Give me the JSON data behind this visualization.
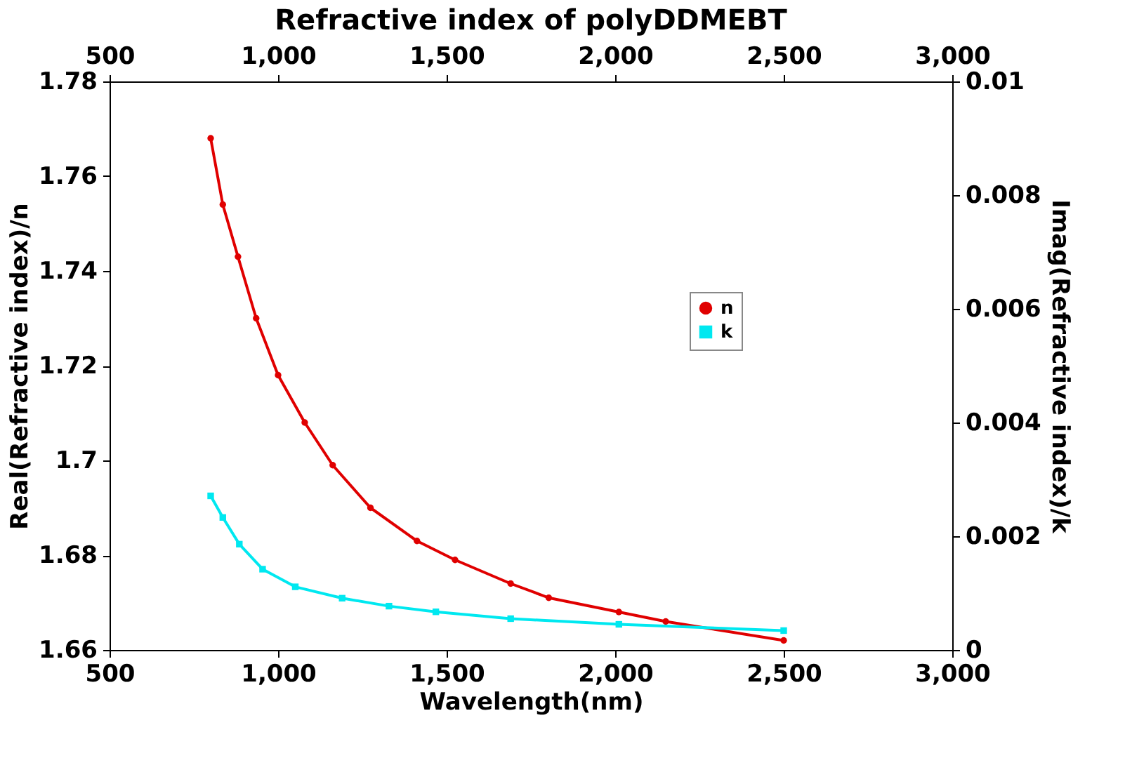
{
  "chart_data": {
    "type": "line",
    "title": "Refractive index of polyDDMEBT",
    "xlabel": "Wavelength(nm)",
    "ylabel": "Real(Refractive index)/n",
    "y2label": "Imag(Refractive index)/k",
    "xlim": [
      500,
      3000
    ],
    "xticks": [
      500,
      {
        "value": 1000,
        "label": "1,000"
      },
      {
        "value": 1500,
        "label": "1,500"
      },
      {
        "value": 2000,
        "label": "2,000"
      },
      {
        "value": 2500,
        "label": "2,500"
      },
      {
        "value": 3000,
        "label": "3,000"
      }
    ],
    "x2lim": [
      500,
      3000
    ],
    "x2ticks": [
      500,
      {
        "value": 1000,
        "label": "1,000"
      },
      {
        "value": 1500,
        "label": "1,500"
      },
      {
        "value": 2000,
        "label": "2,000"
      },
      {
        "value": 2500,
        "label": "2,500"
      },
      {
        "value": 3000,
        "label": "3,000"
      }
    ],
    "ylim": [
      1.66,
      1.78
    ],
    "yticks": [
      1.66,
      1.68,
      1.7,
      1.72,
      1.74,
      1.76,
      1.78
    ],
    "y2lim": [
      0,
      0.01
    ],
    "y2ticks": [
      0,
      0.002,
      0.004,
      0.006,
      0.008,
      0.01
    ],
    "grid": false,
    "legend": "top right",
    "line_style": "solid",
    "series": [
      {
        "name": "n",
        "color": "#e00000",
        "marker": "circle",
        "x": [
          800,
          836,
          881,
          935,
          1000,
          1079,
          1162,
          1274,
          1412,
          1525,
          1690,
          1803,
          2011,
          2150,
          2500
        ],
        "values": [
          1.768,
          1.754,
          1.743,
          1.73,
          1.718,
          1.708,
          1.699,
          1.69,
          1.683,
          1.679,
          1.674,
          1.671,
          1.668,
          1.666,
          1.662
        ]
      },
      {
        "name": "k",
        "color": "#00e8f0",
        "marker": "square",
        "axis": "y2",
        "x": [
          800,
          836,
          885,
          954,
          1051,
          1190,
          1329,
          1468,
          1690,
          2011,
          2500
        ],
        "values": [
          0.00271,
          0.00233,
          0.00186,
          0.00142,
          0.00111,
          0.00091,
          0.00077,
          0.00067,
          0.00055,
          0.00045,
          0.00034
        ]
      }
    ]
  }
}
